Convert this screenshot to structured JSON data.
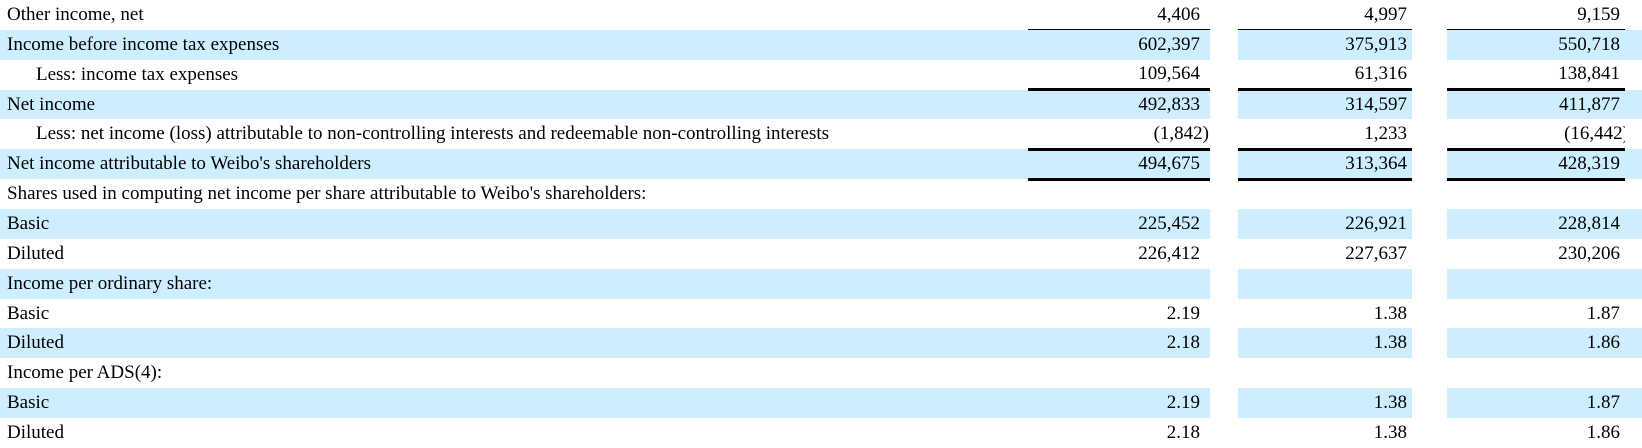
{
  "table": {
    "description": "income-statement-excerpt",
    "accent_color": "#cceeff",
    "rule_color": "#000000",
    "rows": [
      {
        "label": "Other income, net",
        "indent": false,
        "shaded": false,
        "border": "thin",
        "values": [
          "4,406",
          "4,997",
          "9,159"
        ]
      },
      {
        "label": "Income before income tax expenses",
        "indent": false,
        "shaded": true,
        "border": "none",
        "values": [
          "602,397",
          "375,913",
          "550,718"
        ]
      },
      {
        "label": "Less: income tax expenses",
        "indent": true,
        "shaded": false,
        "border": "thick",
        "values": [
          "109,564",
          "61,316",
          "138,841"
        ]
      },
      {
        "label": "Net income",
        "indent": false,
        "shaded": true,
        "border": "none",
        "values": [
          "492,833",
          "314,597",
          "411,877"
        ]
      },
      {
        "label": "Less: net income (loss) attributable to non-controlling interests and redeemable non-controlling interests",
        "indent": true,
        "shaded": false,
        "border": "thick",
        "values": [
          "(1,842)",
          "1,233",
          "(16,442)"
        ]
      },
      {
        "label": "Net income attributable to Weibo's shareholders",
        "indent": false,
        "shaded": true,
        "border": "thick",
        "values": [
          "494,675",
          "313,364",
          "428,319"
        ]
      },
      {
        "label": "Shares used in computing net income per share attributable to Weibo's shareholders:",
        "indent": false,
        "shaded": false,
        "border": "none",
        "values": [
          "",
          "",
          ""
        ]
      },
      {
        "label": "Basic",
        "indent": false,
        "shaded": true,
        "border": "none",
        "values": [
          "225,452",
          "226,921",
          "228,814"
        ]
      },
      {
        "label": "Diluted",
        "indent": false,
        "shaded": false,
        "border": "none",
        "values": [
          "226,412",
          "227,637",
          "230,206"
        ]
      },
      {
        "label": "Income per ordinary share:",
        "indent": false,
        "shaded": true,
        "border": "none",
        "values": [
          "",
          "",
          ""
        ]
      },
      {
        "label": "Basic",
        "indent": false,
        "shaded": false,
        "border": "none",
        "values": [
          "2.19",
          "1.38",
          "1.87"
        ]
      },
      {
        "label": "Diluted",
        "indent": false,
        "shaded": true,
        "border": "none",
        "values": [
          "2.18",
          "1.38",
          "1.86"
        ]
      },
      {
        "label": "Income per ADS(4):",
        "indent": false,
        "shaded": false,
        "border": "none",
        "values": [
          "",
          "",
          ""
        ]
      },
      {
        "label": "Basic",
        "indent": false,
        "shaded": true,
        "border": "none",
        "values": [
          "2.19",
          "1.38",
          "1.87"
        ]
      },
      {
        "label": "Diluted",
        "indent": false,
        "shaded": false,
        "border": "none",
        "values": [
          "2.18",
          "1.38",
          "1.86"
        ]
      }
    ]
  }
}
